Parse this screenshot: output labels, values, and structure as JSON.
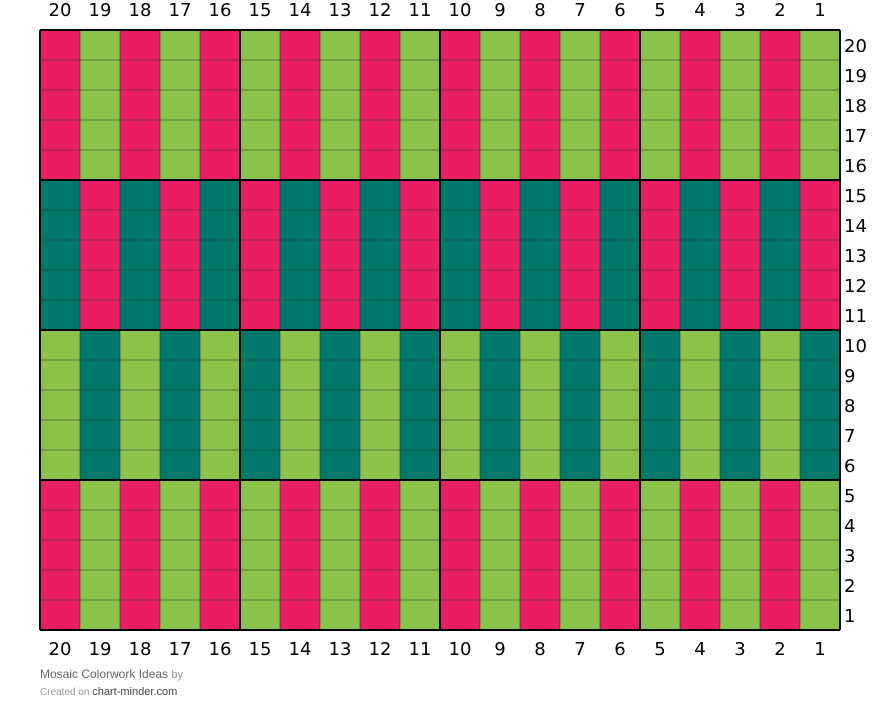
{
  "chart": {
    "title": "Mosaic Colorwork Ideas",
    "by_label": "by",
    "created_on_label": "Created on",
    "site": "chart-minder.com",
    "columns": 20,
    "rows": 20,
    "colors": {
      "pink": "#E91E63",
      "lime": "#8BC34A",
      "teal": "#00796B",
      "grid": "#333333",
      "major_grid": "#000000"
    },
    "column_labels": [
      "20",
      "19",
      "18",
      "17",
      "16",
      "15",
      "14",
      "13",
      "12",
      "11",
      "10",
      "9",
      "8",
      "7",
      "6",
      "5",
      "4",
      "3",
      "2",
      "1"
    ],
    "row_labels": [
      "20",
      "19",
      "18",
      "17",
      "16",
      "15",
      "14",
      "13",
      "12",
      "11",
      "10",
      "9",
      "8",
      "7",
      "6",
      "5",
      "4",
      "3",
      "2",
      "1"
    ],
    "bands": [
      {
        "rows": "20-16",
        "odd_stitch_color": "lime",
        "even_stitch_color": "pink"
      },
      {
        "rows": "15-11",
        "odd_stitch_color": "pink",
        "even_stitch_color": "teal"
      },
      {
        "rows": "10-6",
        "odd_stitch_color": "teal",
        "even_stitch_color": "lime"
      },
      {
        "rows": "5-1",
        "odd_stitch_color": "lime",
        "even_stitch_color": "pink"
      }
    ]
  }
}
